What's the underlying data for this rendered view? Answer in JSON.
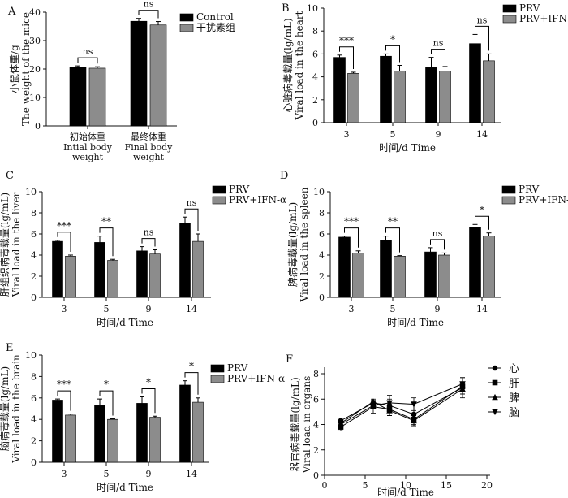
{
  "chart_data": [
    {
      "panel": "A",
      "type": "bar",
      "ylabel_cn": "小鼠体重/g",
      "ylabel_en": "The weight of the mice",
      "categories": [
        {
          "cn": "初始体重",
          "en1": "Intial body",
          "en2": "weight"
        },
        {
          "cn": "最终体重",
          "en1": "Final body",
          "en2": "weight"
        }
      ],
      "series": [
        {
          "name": "Control",
          "color": "#000000",
          "values": [
            20.5,
            36.8
          ],
          "errors": [
            0.6,
            1.0
          ]
        },
        {
          "name": "干扰素组",
          "color": "#8c8c8c",
          "values": [
            20.3,
            35.5
          ],
          "errors": [
            0.5,
            1.2
          ]
        }
      ],
      "ylim": [
        0,
        40
      ],
      "yticks": [
        "0",
        "10",
        "20",
        "30",
        "40"
      ],
      "significance": [
        "ns",
        "ns"
      ],
      "legend_position": "top-right"
    },
    {
      "panel": "B",
      "type": "bar",
      "ylabel_cn": "心脏病毒载量(lg/mL)",
      "ylabel_en": "Viral load in the heart",
      "xlabel": "时间/d Time",
      "categories": [
        "3",
        "5",
        "9",
        "14"
      ],
      "series": [
        {
          "name": "PRV",
          "color": "#000000",
          "values": [
            5.7,
            5.8,
            4.8,
            6.9
          ],
          "errors": [
            0.2,
            0.2,
            0.9,
            0.8
          ]
        },
        {
          "name": "PRV+IFN-α",
          "color": "#8c8c8c",
          "values": [
            4.3,
            4.5,
            4.5,
            5.4
          ],
          "errors": [
            0.1,
            0.5,
            0.4,
            0.6
          ]
        }
      ],
      "ylim": [
        0,
        10
      ],
      "yticks": [
        "0",
        "2",
        "4",
        "6",
        "8",
        "10"
      ],
      "significance": [
        "***",
        "*",
        "ns",
        "ns"
      ],
      "legend_position": "top-right"
    },
    {
      "panel": "C",
      "type": "bar",
      "ylabel_cn": "肝组织病毒载量(lg/mL)",
      "ylabel_en": "Viral load in the liver",
      "xlabel": "时间/d Time",
      "categories": [
        "3",
        "5",
        "9",
        "14"
      ],
      "series": [
        {
          "name": "PRV",
          "color": "#000000",
          "values": [
            5.3,
            5.2,
            4.4,
            7.0
          ],
          "errors": [
            0.1,
            0.6,
            0.4,
            0.6
          ]
        },
        {
          "name": "PRV+IFN-α",
          "color": "#8c8c8c",
          "values": [
            3.9,
            3.5,
            4.1,
            5.3
          ],
          "errors": [
            0.1,
            0.1,
            0.4,
            0.7
          ]
        }
      ],
      "ylim": [
        0,
        10
      ],
      "yticks": [
        "0",
        "2",
        "4",
        "6",
        "8",
        "10"
      ],
      "significance": [
        "***",
        "**",
        "ns",
        "ns"
      ],
      "legend_position": "top-right"
    },
    {
      "panel": "D",
      "type": "bar",
      "ylabel_cn": "脾病毒载量(lg/mL)",
      "ylabel_en": "Viral load in the spleen",
      "xlabel": "时间/d Time",
      "categories": [
        "3",
        "5",
        "9",
        "14"
      ],
      "series": [
        {
          "name": "PRV",
          "color": "#000000",
          "values": [
            5.7,
            5.4,
            4.3,
            6.6
          ],
          "errors": [
            0.1,
            0.4,
            0.4,
            0.3
          ]
        },
        {
          "name": "PRV+IFN-α",
          "color": "#8c8c8c",
          "values": [
            4.2,
            3.9,
            4.0,
            5.8
          ],
          "errors": [
            0.2,
            0.05,
            0.2,
            0.3
          ]
        }
      ],
      "ylim": [
        0,
        10
      ],
      "yticks": [
        "0",
        "2",
        "4",
        "6",
        "8",
        "10"
      ],
      "significance": [
        "***",
        "**",
        "ns",
        "*"
      ],
      "legend_position": "top-right"
    },
    {
      "panel": "E",
      "type": "bar",
      "ylabel_cn": "脑病毒载量(lg/mL)",
      "ylabel_en": "Viral load in the brain",
      "xlabel": "时间/d Time",
      "categories": [
        "3",
        "5",
        "9",
        "14"
      ],
      "series": [
        {
          "name": "PRV",
          "color": "#000000",
          "values": [
            5.8,
            5.3,
            5.5,
            7.2
          ],
          "errors": [
            0.1,
            0.6,
            0.6,
            0.4
          ]
        },
        {
          "name": "PRV+IFN-α",
          "color": "#8c8c8c",
          "values": [
            4.4,
            4.0,
            4.2,
            5.6
          ],
          "errors": [
            0.1,
            0.05,
            0.1,
            0.4
          ]
        }
      ],
      "ylim": [
        0,
        10
      ],
      "yticks": [
        "0",
        "2",
        "4",
        "6",
        "8",
        "10"
      ],
      "significance": [
        "***",
        "*",
        "*",
        "*"
      ],
      "legend_position": "top-right"
    },
    {
      "panel": "F",
      "type": "line",
      "ylabel_cn": "器官病毒载量(lg/mL)",
      "ylabel_en": "Viral load in organs",
      "xlabel": "时间/d Time",
      "xlim": [
        0,
        20
      ],
      "ylim": [
        0,
        8
      ],
      "xticks": [
        "0",
        "5",
        "10",
        "15",
        "20"
      ],
      "yticks": [
        "0",
        "2",
        "4",
        "6",
        "8"
      ],
      "legend_position": "top-right",
      "series": [
        {
          "name": "心",
          "marker": "circle",
          "x": [
            2,
            6,
            8,
            11,
            17
          ],
          "y": [
            4.3,
            5.7,
            5.5,
            4.8,
            6.9
          ],
          "errors": [
            0.2,
            0.2,
            0.8,
            0.9,
            0.8
          ]
        },
        {
          "name": "肝",
          "marker": "square",
          "x": [
            2,
            6,
            8,
            11,
            17
          ],
          "y": [
            3.8,
            5.4,
            5.2,
            4.4,
            7.0
          ],
          "errors": [
            0.3,
            0.5,
            0.5,
            0.4,
            0.6
          ]
        },
        {
          "name": "脾",
          "marker": "triangle-up",
          "x": [
            2,
            6,
            8,
            11,
            17
          ],
          "y": [
            4.1,
            5.8,
            5.1,
            4.3,
            6.8
          ],
          "errors": [
            0.2,
            0.2,
            0.4,
            0.4,
            0.4
          ]
        },
        {
          "name": "脑",
          "marker": "triangle-down",
          "x": [
            2,
            6,
            8,
            11,
            17
          ],
          "y": [
            4.0,
            5.5,
            5.7,
            5.6,
            7.2
          ],
          "errors": [
            0.2,
            0.2,
            0.3,
            0.5,
            0.4
          ]
        }
      ]
    }
  ]
}
